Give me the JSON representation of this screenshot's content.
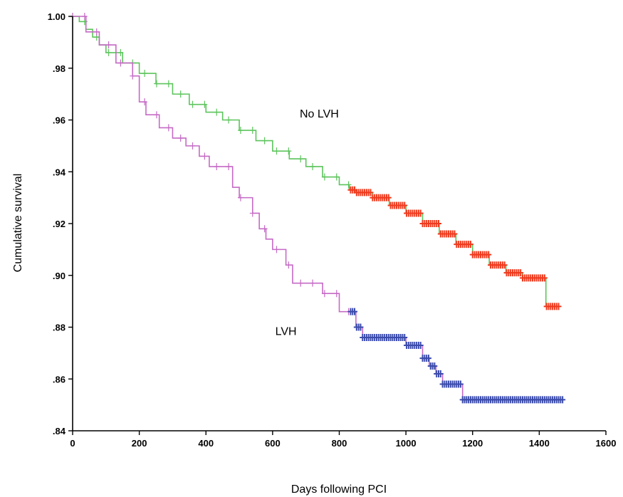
{
  "chart_data": {
    "type": "line",
    "title": "",
    "xlabel": "Days following PCI",
    "ylabel": "Cumulative survival",
    "xlim": [
      0,
      1600
    ],
    "ylim": [
      0.84,
      1.0
    ],
    "x_ticks": [
      0,
      200,
      400,
      600,
      800,
      1000,
      1200,
      1400,
      1600
    ],
    "x_tick_labels": [
      "0",
      "200",
      "400",
      "600",
      "800",
      "1000",
      "1200",
      "1400",
      "1600"
    ],
    "y_ticks": [
      0.84,
      0.86,
      0.88,
      0.9,
      0.92,
      0.94,
      0.96,
      0.98,
      1.0
    ],
    "y_tick_labels": [
      ".84",
      ".86",
      ".88",
      ".90",
      ".92",
      ".94",
      ".96",
      ".98",
      "1.00"
    ],
    "grid": false,
    "legend": "none",
    "annotations": [
      {
        "text": "No LVH",
        "x": 740,
        "y": 0.961
      },
      {
        "text": "LVH",
        "x": 640,
        "y": 0.877
      }
    ],
    "series": [
      {
        "color": "#5cc45c",
        "censor_color": "#f03a1e",
        "censor_start": 830,
        "points": [
          [
            0,
            1.0
          ],
          [
            20,
            0.998
          ],
          [
            40,
            0.995
          ],
          [
            60,
            0.992
          ],
          [
            80,
            0.989
          ],
          [
            100,
            0.986
          ],
          [
            150,
            0.982
          ],
          [
            200,
            0.978
          ],
          [
            250,
            0.974
          ],
          [
            300,
            0.97
          ],
          [
            350,
            0.966
          ],
          [
            400,
            0.963
          ],
          [
            450,
            0.96
          ],
          [
            500,
            0.956
          ],
          [
            550,
            0.952
          ],
          [
            600,
            0.948
          ],
          [
            650,
            0.945
          ],
          [
            700,
            0.942
          ],
          [
            750,
            0.938
          ],
          [
            800,
            0.935
          ],
          [
            830,
            0.933
          ],
          [
            850,
            0.932
          ],
          [
            900,
            0.93
          ],
          [
            950,
            0.927
          ],
          [
            1000,
            0.924
          ],
          [
            1050,
            0.92
          ],
          [
            1100,
            0.916
          ],
          [
            1150,
            0.912
          ],
          [
            1200,
            0.908
          ],
          [
            1250,
            0.904
          ],
          [
            1300,
            0.901
          ],
          [
            1350,
            0.899
          ],
          [
            1410,
            0.899
          ],
          [
            1420,
            0.888
          ],
          [
            1460,
            0.888
          ]
        ]
      },
      {
        "color": "#c56ac5",
        "censor_color": "#3b4bab",
        "censor_start": 830,
        "points": [
          [
            0,
            1.0
          ],
          [
            40,
            0.994
          ],
          [
            80,
            0.989
          ],
          [
            130,
            0.982
          ],
          [
            180,
            0.977
          ],
          [
            200,
            0.967
          ],
          [
            220,
            0.962
          ],
          [
            260,
            0.957
          ],
          [
            300,
            0.953
          ],
          [
            340,
            0.95
          ],
          [
            380,
            0.946
          ],
          [
            410,
            0.942
          ],
          [
            480,
            0.934
          ],
          [
            500,
            0.93
          ],
          [
            540,
            0.924
          ],
          [
            560,
            0.918
          ],
          [
            580,
            0.914
          ],
          [
            600,
            0.91
          ],
          [
            640,
            0.904
          ],
          [
            660,
            0.897
          ],
          [
            700,
            0.897
          ],
          [
            750,
            0.893
          ],
          [
            800,
            0.886
          ],
          [
            830,
            0.886
          ],
          [
            850,
            0.88
          ],
          [
            870,
            0.876
          ],
          [
            980,
            0.876
          ],
          [
            1000,
            0.873
          ],
          [
            1030,
            0.873
          ],
          [
            1050,
            0.868
          ],
          [
            1070,
            0.865
          ],
          [
            1090,
            0.862
          ],
          [
            1110,
            0.858
          ],
          [
            1160,
            0.858
          ],
          [
            1170,
            0.852
          ],
          [
            1470,
            0.852
          ]
        ]
      }
    ]
  }
}
